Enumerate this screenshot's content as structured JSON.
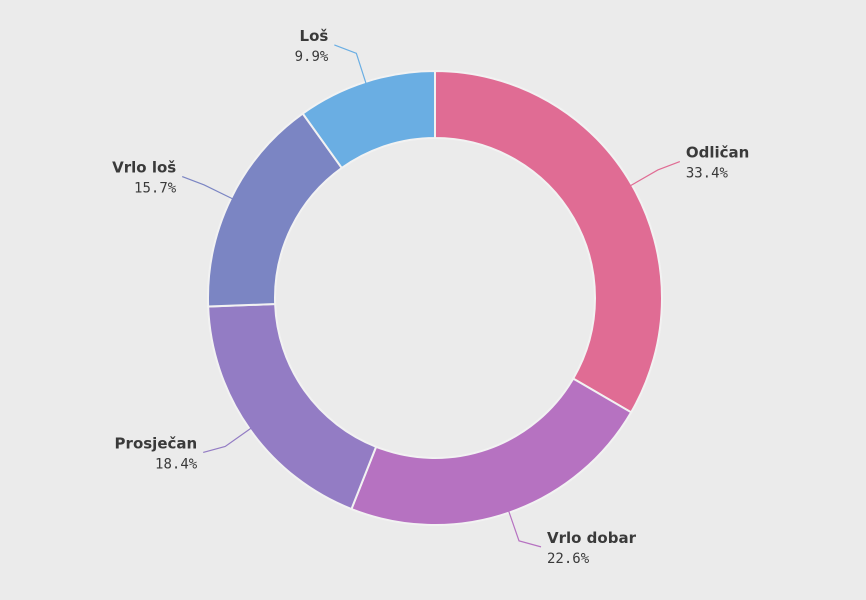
{
  "chart_data": {
    "type": "pie",
    "variant": "donut",
    "title": "",
    "series": [
      {
        "name": "Odličan",
        "value": 33.4,
        "label": "33.4%",
        "color": "#e06c94"
      },
      {
        "name": "Vrlo dobar",
        "value": 22.6,
        "label": "22.6%",
        "color": "#b672c1"
      },
      {
        "name": "Prosječan",
        "value": 18.4,
        "label": "18.4%",
        "color": "#937cc4"
      },
      {
        "name": "Vrlo loš",
        "value": 15.7,
        "label": "15.7%",
        "color": "#7b85c3"
      },
      {
        "name": "Loš",
        "value": 9.9,
        "label": "9.9%",
        "color": "#6aaee3"
      }
    ],
    "legend": "none",
    "background": "#ebebeb"
  }
}
